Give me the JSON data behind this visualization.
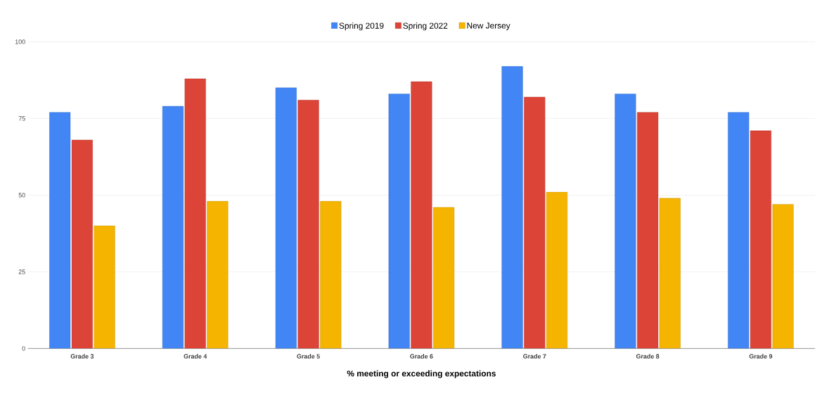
{
  "chart_data": {
    "type": "bar",
    "xlabel": "% meeting or exceeding expectations",
    "categories": [
      "Grade 3",
      "Grade 4",
      "Grade 5",
      "Grade 6",
      "Grade 7",
      "Grade 8",
      "Grade 9"
    ],
    "series": [
      {
        "name": "Spring 2019",
        "color": "#4285f4",
        "values": [
          77,
          79,
          85,
          83,
          92,
          83,
          77
        ]
      },
      {
        "name": "Spring 2022",
        "color": "#db4437",
        "values": [
          68,
          88,
          81,
          87,
          82,
          77,
          71
        ]
      },
      {
        "name": "New Jersey",
        "color": "#f4b400",
        "values": [
          40,
          48,
          48,
          46,
          51,
          49,
          47
        ]
      }
    ],
    "ylim": [
      0,
      100
    ],
    "yticks": [
      0,
      25,
      50,
      75,
      100
    ],
    "grid": "y",
    "legend": "top"
  }
}
